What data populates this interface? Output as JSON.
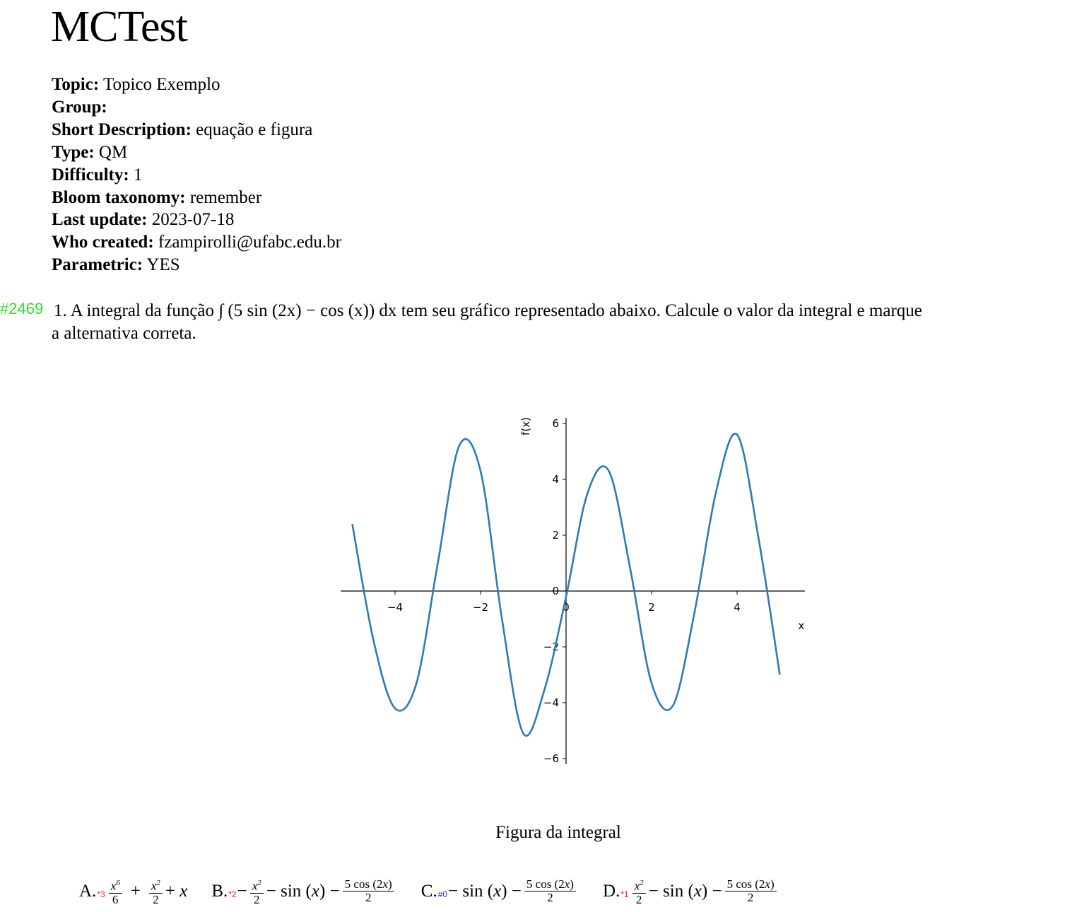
{
  "header": {
    "title": "MCTest"
  },
  "meta": [
    {
      "key": "Topic:",
      "value": "Topico Exemplo"
    },
    {
      "key": "Group:",
      "value": ""
    },
    {
      "key": "Short Description:",
      "value": "equação e figura"
    },
    {
      "key": "Type:",
      "value": "QM"
    },
    {
      "key": "Difficulty:",
      "value": "1"
    },
    {
      "key": "Bloom taxonomy:",
      "value": "remember"
    },
    {
      "key": "Last update:",
      "value": "2023-07-18"
    },
    {
      "key": "Who created:",
      "value": "fzampirolli@ufabc.edu.br"
    },
    {
      "key": "Parametric:",
      "value": "YES"
    }
  ],
  "question": {
    "id": "#2469",
    "number": "1.",
    "text_before": "A integral da função",
    "integrand": "∫ (5 sin (2x) − cos (x)) dx",
    "text_after": "tem seu gráfico representado abaixo. Calcule o valor da integral e marque",
    "text_line2": "a alternativa correta."
  },
  "figure": {
    "caption": "Figura da integral"
  },
  "chart_data": {
    "type": "line",
    "xlabel": "x",
    "ylabel": "f(x)",
    "xlim": [
      -5.3,
      5.6
    ],
    "ylim": [
      -6.2,
      6.2
    ],
    "xticks": [
      -4,
      -2,
      0,
      2,
      4
    ],
    "xtick_labels": [
      "−4",
      "−2",
      "0",
      "2",
      "4"
    ],
    "yticks": [
      -6,
      -4,
      -2,
      0,
      2,
      4,
      6
    ],
    "ytick_labels": [
      "−6",
      "−4",
      "−2",
      "0",
      "2",
      "4",
      "6"
    ],
    "series": [
      {
        "x": [
          -5.0,
          -4.5,
          -4.0,
          -3.5,
          -3.0,
          -2.5,
          -2.0,
          -1.5,
          -1.0,
          -0.5,
          0.0,
          0.5,
          1.0,
          1.5,
          2.0,
          2.5,
          3.0,
          3.5,
          4.0,
          4.5,
          5.0
        ],
        "y": [
          2.4,
          -1.8,
          -4.2,
          -3.3,
          1.0,
          5.2,
          4.3,
          -1.0,
          -5.1,
          -3.5,
          -0.2,
          3.5,
          4.3,
          0.8,
          -3.3,
          -4.1,
          -0.8,
          3.5,
          5.6,
          1.9,
          -3.0
        ]
      }
    ],
    "color": "#2e7ab4",
    "grid": false
  },
  "answers": [
    {
      "label": "A.",
      "mark": "*3",
      "mark_color": "red",
      "parts": [
        "x^6/6",
        "+",
        "x^2/2",
        "+ x"
      ]
    },
    {
      "label": "B.",
      "mark": "*2",
      "mark_color": "red",
      "parts": [
        "−",
        "x^2/2",
        "− sin (x) −",
        "5 cos (2x)/2"
      ]
    },
    {
      "label": "C.",
      "mark": "#0",
      "mark_color": "blue",
      "parts": [
        "− sin (x) −",
        "5 cos (2x)/2"
      ]
    },
    {
      "label": "D.",
      "mark": "*1",
      "mark_color": "red",
      "parts": [
        "x^2/2",
        "− sin (x) −",
        "5 cos (2x)/2"
      ]
    }
  ]
}
